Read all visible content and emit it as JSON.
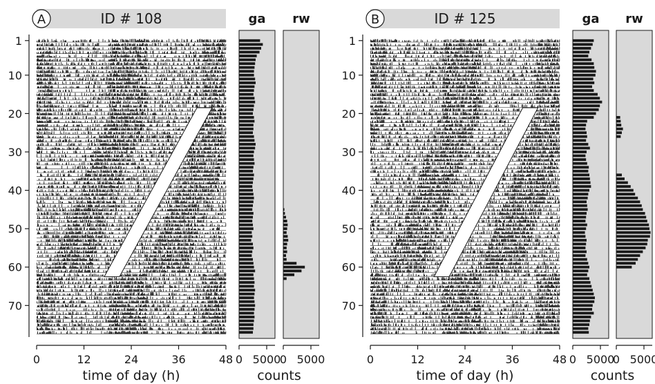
{
  "figure": {
    "colors": {
      "header_fill": "#d9d9d9",
      "hist_fill": "#d9d9d9",
      "ink": "#1a1a1a",
      "gap": "#ffffff"
    },
    "shared": {
      "day_ticks": [
        1,
        10,
        20,
        30,
        40,
        50,
        60,
        70
      ],
      "day_range": [
        1,
        77
      ],
      "x_ticks": [
        0,
        12,
        24,
        36,
        48
      ],
      "x_range": [
        0,
        48
      ],
      "xlabel": "time of day (h)",
      "hist_ticks": [
        0,
        5000
      ],
      "hist_range": [
        0,
        6500
      ],
      "hist_xlabel": "counts"
    },
    "panels": [
      {
        "letter": "A",
        "title": "ID # 108",
        "hist_titles": [
          "ga",
          "rw"
        ]
      },
      {
        "letter": "B",
        "title": "ID # 125",
        "hist_titles": [
          "ga",
          "rw"
        ]
      }
    ]
  },
  "chart_data": [
    {
      "type": "actogram",
      "title": "ID # 108",
      "xlabel": "time of day (h)",
      "ylabel": "",
      "x_range": [
        0,
        48
      ],
      "y_range": [
        1,
        77
      ],
      "y_ticks": [
        1,
        10,
        20,
        30,
        40,
        50,
        60,
        70
      ],
      "x_ticks": [
        0,
        12,
        24,
        36,
        48
      ],
      "plot": "double-plotted",
      "annotation_band": {
        "start_day": 19,
        "start_hour": 44.5,
        "end_day": 62,
        "end_hour": 21.0
      }
    },
    {
      "type": "bar",
      "orientation": "horizontal",
      "title": "ga",
      "xlabel": "counts",
      "x_ticks": [
        0,
        5000
      ],
      "xlim": [
        0,
        6500
      ],
      "y": "day",
      "values": [
        3800,
        4300,
        4000,
        3700,
        3200,
        3000,
        2900,
        2800,
        2700,
        2700,
        2900,
        3000,
        2800,
        2700,
        2600,
        2800,
        2900,
        2700,
        2600,
        2500,
        2700,
        2800,
        2600,
        2600,
        2500,
        2700,
        2800,
        3000,
        2900,
        2700,
        2600,
        2700,
        2800,
        2600,
        2500,
        2700,
        2600,
        2500,
        2400,
        2500,
        2600,
        2700,
        2600,
        2500,
        2400,
        2600,
        2500,
        2400,
        2500,
        2600,
        2300,
        2400,
        2200,
        2500,
        2600,
        2400,
        2300,
        2500,
        2600,
        2700,
        2900,
        2600,
        2700,
        2800,
        2700,
        2900,
        2800,
        2700,
        2800,
        2900,
        2800,
        2700,
        2800,
        2700,
        2600,
        2600,
        2500
      ]
    },
    {
      "type": "bar",
      "orientation": "horizontal",
      "title": "rw",
      "xlabel": "counts",
      "x_ticks": [
        0,
        5000
      ],
      "xlim": [
        0,
        6500
      ],
      "y": "day",
      "values": [
        0,
        0,
        0,
        0,
        0,
        0,
        0,
        0,
        0,
        0,
        0,
        0,
        0,
        0,
        0,
        0,
        0,
        0,
        0,
        0,
        0,
        0,
        0,
        0,
        0,
        0,
        0,
        0,
        0,
        0,
        0,
        0,
        0,
        0,
        0,
        0,
        0,
        0,
        0,
        0,
        0,
        0,
        0,
        0,
        200,
        300,
        500,
        700,
        800,
        700,
        600,
        800,
        900,
        700,
        600,
        700,
        500,
        600,
        2400,
        3900,
        3300,
        2000,
        600,
        0,
        0,
        0,
        0,
        0,
        0,
        0,
        0,
        0,
        0,
        0,
        0,
        0,
        0
      ]
    },
    {
      "type": "actogram",
      "title": "ID # 125",
      "xlabel": "time of day (h)",
      "ylabel": "",
      "x_range": [
        0,
        48
      ],
      "y_range": [
        1,
        77
      ],
      "y_ticks": [
        1,
        10,
        20,
        30,
        40,
        50,
        60,
        70
      ],
      "x_ticks": [
        0,
        12,
        24,
        36,
        48
      ],
      "plot": "double-plotted",
      "annotation_band": {
        "start_day": 19,
        "start_hour": 42.5,
        "end_day": 62,
        "end_hour": 20.0
      }
    },
    {
      "type": "bar",
      "orientation": "horizontal",
      "title": "ga",
      "xlabel": "counts",
      "x_ticks": [
        0,
        5000
      ],
      "xlim": [
        0,
        6500
      ],
      "y": "day",
      "values": [
        3800,
        3600,
        3300,
        3000,
        2800,
        3400,
        3800,
        3900,
        4200,
        4100,
        3700,
        3900,
        3500,
        3800,
        4500,
        4900,
        5300,
        4900,
        4700,
        4200,
        3800,
        2600,
        2400,
        2300,
        2500,
        2600,
        2400,
        2800,
        3100,
        2500,
        2300,
        2400,
        2600,
        2900,
        2800,
        3000,
        3100,
        3200,
        3300,
        3000,
        2800,
        2700,
        2500,
        2600,
        2700,
        2500,
        2400,
        2300,
        2600,
        2400,
        2200,
        2300,
        2500,
        2400,
        2300,
        2500,
        2300,
        2600,
        2800,
        3000,
        2800,
        2600,
        3000,
        3200,
        3400,
        3600,
        3800,
        4000,
        3900,
        3600,
        3500,
        3800,
        3300,
        3100,
        3000,
        2800,
        2900
      ]
    },
    {
      "type": "bar",
      "orientation": "horizontal",
      "title": "rw",
      "xlabel": "counts",
      "x_ticks": [
        0,
        5000
      ],
      "xlim": [
        0,
        6500
      ],
      "y": "day",
      "values": [
        0,
        0,
        0,
        0,
        0,
        0,
        0,
        0,
        0,
        0,
        0,
        0,
        0,
        0,
        0,
        0,
        0,
        0,
        0,
        0,
        700,
        800,
        900,
        1200,
        1000,
        800,
        0,
        0,
        0,
        0,
        0,
        0,
        0,
        0,
        0,
        1000,
        1500,
        2100,
        2600,
        3100,
        3400,
        3900,
        4300,
        4600,
        4800,
        5200,
        5400,
        5600,
        5900,
        6000,
        6200,
        6100,
        5700,
        5600,
        5300,
        4800,
        4300,
        3900,
        3500,
        2800,
        0,
        0,
        0,
        0,
        0,
        0,
        0,
        0,
        0,
        0,
        0,
        0,
        0,
        0,
        0,
        0,
        0
      ]
    }
  ]
}
